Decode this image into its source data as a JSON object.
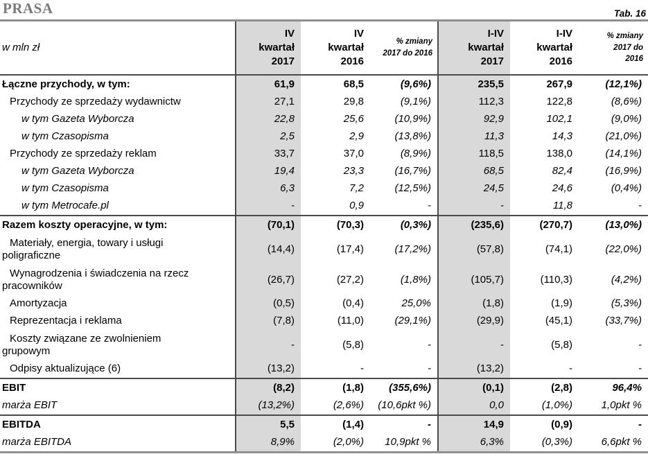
{
  "header": {
    "title": "PRASA",
    "table_number": "Tab. 16"
  },
  "colors": {
    "shaded_column": "#d9d9d9",
    "rule_heavy": "#8f8f8f",
    "rule_dark": "#4a4a4a",
    "title_gray": "#7b7b7e"
  },
  "table": {
    "unit_label": "w mln zł",
    "columns": [
      {
        "id": "q4-2017",
        "header": "IV\nkwartał\n2017",
        "shaded": true,
        "small": false
      },
      {
        "id": "q4-2016",
        "header": "IV\nkwartał\n2016",
        "shaded": false,
        "small": false
      },
      {
        "id": "chg-q4",
        "header": "% zmiany\n2017 do 2016",
        "shaded": false,
        "small": true
      },
      {
        "id": "i-iv-2017",
        "header": "I-IV\nkwartał\n2017",
        "shaded": true,
        "small": false
      },
      {
        "id": "i-iv-2016",
        "header": "I-IV\nkwartał\n2016",
        "shaded": false,
        "small": false
      },
      {
        "id": "chg-i-iv",
        "header": "% zmiany\n2017 do\n2016",
        "shaded": false,
        "small": true
      }
    ],
    "rows": [
      {
        "label": "Łączne przychody, w tym:",
        "style": "bold",
        "indent": 0,
        "section_start": false,
        "values": [
          "61,9",
          "68,5",
          "(9,6%)",
          "235,5",
          "267,9",
          "(12,1%)"
        ]
      },
      {
        "label": "Przychody ze sprzedaży wydawnictw",
        "style": "normal",
        "indent": 1,
        "section_start": false,
        "values": [
          "27,1",
          "29,8",
          "(9,1%)",
          "112,3",
          "122,8",
          "(8,6%)"
        ]
      },
      {
        "label": "w tym Gazeta Wyborcza",
        "style": "italic",
        "indent": 2,
        "section_start": false,
        "values": [
          "22,8",
          "25,6",
          "(10,9%)",
          "92,9",
          "102,1",
          "(9,0%)"
        ]
      },
      {
        "label": "w tym Czasopisma",
        "style": "italic",
        "indent": 2,
        "section_start": false,
        "values": [
          "2,5",
          "2,9",
          "(13,8%)",
          "11,3",
          "14,3",
          "(21,0%)"
        ]
      },
      {
        "label": "Przychody ze sprzedaży reklam",
        "style": "normal",
        "indent": 1,
        "section_start": false,
        "values": [
          "33,7",
          "37,0",
          "(8,9%)",
          "118,5",
          "138,0",
          "(14,1%)"
        ]
      },
      {
        "label": "w tym Gazeta Wyborcza",
        "style": "italic",
        "indent": 2,
        "section_start": false,
        "values": [
          "19,4",
          "23,3",
          "(16,7%)",
          "68,5",
          "82,4",
          "(16,9%)"
        ]
      },
      {
        "label": "w tym Czasopisma",
        "style": "italic",
        "indent": 2,
        "section_start": false,
        "values": [
          "6,3",
          "7,2",
          "(12,5%)",
          "24,5",
          "24,6",
          "(0,4%)"
        ]
      },
      {
        "label": "w tym Metrocafe.pl",
        "style": "italic",
        "indent": 2,
        "section_start": false,
        "values": [
          "-",
          "0,9",
          "-",
          "-",
          "11,8",
          "-"
        ]
      },
      {
        "label": "Razem koszty operacyjne, w tym:",
        "style": "bold",
        "indent": 0,
        "section_start": true,
        "values": [
          "(70,1)",
          "(70,3)",
          "(0,3%)",
          "(235,6)",
          "(270,7)",
          "(13,0%)"
        ]
      },
      {
        "label": "Materiały, energia, towary i usługi\npoligraficzne",
        "style": "normal",
        "indent": 1,
        "section_start": false,
        "values": [
          "(14,4)",
          "(17,4)",
          "(17,2%)",
          "(57,8)",
          "(74,1)",
          "(22,0%)"
        ]
      },
      {
        "label": "Wynagrodzenia i świadczenia na rzecz\npracowników",
        "style": "normal",
        "indent": 1,
        "section_start": false,
        "values": [
          "(26,7)",
          "(27,2)",
          "(1,8%)",
          "(105,7)",
          "(110,3)",
          "(4,2%)"
        ]
      },
      {
        "label": "Amortyzacja",
        "style": "normal",
        "indent": 1,
        "section_start": false,
        "values": [
          "(0,5)",
          "(0,4)",
          "25,0%",
          "(1,8)",
          "(1,9)",
          "(5,3%)"
        ]
      },
      {
        "label": "Reprezentacja i reklama",
        "style": "normal",
        "indent": 1,
        "section_start": false,
        "values": [
          "(7,8)",
          "(11,0)",
          "(29,1%)",
          "(29,9)",
          "(45,1)",
          "(33,7%)"
        ]
      },
      {
        "label": "Koszty związane ze zwolnieniem\ngrupowym",
        "style": "normal",
        "indent": 1,
        "section_start": false,
        "values": [
          "-",
          "(5,8)",
          "-",
          "-",
          "(5,8)",
          "-"
        ]
      },
      {
        "label": "Odpisy aktualizujące (6)",
        "style": "normal",
        "indent": 1,
        "section_start": false,
        "values": [
          "(13,2)",
          "-",
          "-",
          "(13,2)",
          "-",
          "-"
        ]
      },
      {
        "label": "EBIT",
        "style": "bold",
        "indent": 0,
        "section_start": true,
        "values": [
          "(8,2)",
          "(1,8)",
          "(355,6%)",
          "(0,1)",
          "(2,8)",
          "96,4%"
        ]
      },
      {
        "label": "marża EBIT",
        "style": "italic",
        "indent": 0,
        "section_start": false,
        "values": [
          "(13,2%)",
          "(2,6%)",
          "(10,6pkt %)",
          "0,0",
          "(1,0%)",
          "1,0pkt %"
        ]
      },
      {
        "label": "EBITDA",
        "style": "bold",
        "indent": 0,
        "section_start": true,
        "values": [
          "5,5",
          "(1,4)",
          "-",
          "14,9",
          "(0,9)",
          "-"
        ]
      },
      {
        "label": "marża EBITDA",
        "style": "italic",
        "indent": 0,
        "section_start": false,
        "values": [
          "8,9%",
          "(2,0%)",
          "10,9pkt %",
          "6,3%",
          "(0,3%)",
          "6,6pkt %"
        ]
      }
    ]
  }
}
